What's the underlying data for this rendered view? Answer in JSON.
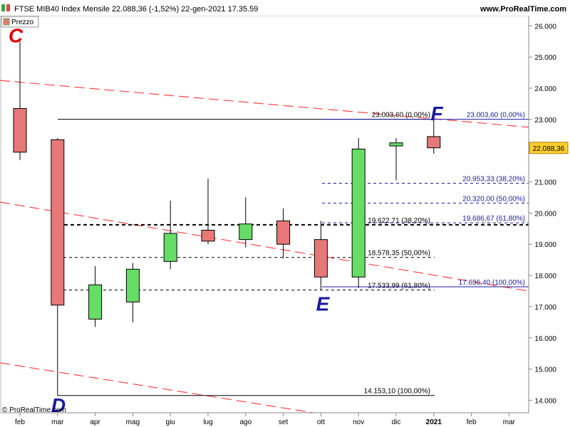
{
  "header": {
    "title": "FTSE MIB40 Index Mensile 22.088,36 (-1,52%) 22-gen-2021 17.35.59",
    "site": "www.ProRealTime.com",
    "legend_label": "Prezzo",
    "copyright": "© ProRealTime.com"
  },
  "colors": {
    "up": "#66dd66",
    "down": "#e87777",
    "trend": "#ff4444",
    "fib_text": "#1a1aa0",
    "wave_label": "#1a1aa0",
    "current_price_bg": "#ffcc33"
  },
  "chart_data": {
    "type": "candlestick",
    "title": "FTSE MIB40 Index Mensile",
    "ylim": [
      13.6,
      26.3
    ],
    "y_ticks": [
      "14.000",
      "15.000",
      "16.000",
      "17.000",
      "18.000",
      "19.000",
      "20.000",
      "21.000",
      "22.000",
      "23.000",
      "24.000",
      "25.000",
      "26.000"
    ],
    "y_tick_values": [
      14,
      15,
      16,
      17,
      18,
      19,
      20,
      21,
      22,
      23,
      24,
      25,
      26
    ],
    "x_ticks": [
      "feb",
      "mar",
      "apr",
      "mag",
      "giu",
      "lug",
      "ago",
      "set",
      "ott",
      "nov",
      "dic",
      "2021",
      "feb",
      "mar"
    ],
    "current_price": "22.088,36",
    "current_price_value": 22.088,
    "candles": [
      {
        "month": "feb 2020",
        "open": 23.35,
        "high": 25.5,
        "low": 21.7,
        "close": 21.95
      },
      {
        "month": "mar 2020",
        "open": 22.35,
        "high": 22.4,
        "low": 14.15,
        "close": 17.05
      },
      {
        "month": "apr 2020",
        "open": 16.6,
        "high": 18.3,
        "low": 16.35,
        "close": 17.7
      },
      {
        "month": "mag 2020",
        "open": 17.15,
        "high": 18.4,
        "low": 16.5,
        "close": 18.2
      },
      {
        "month": "giu 2020",
        "open": 18.45,
        "high": 20.4,
        "low": 18.2,
        "close": 19.35
      },
      {
        "month": "lug 2020",
        "open": 19.45,
        "high": 21.1,
        "low": 19.0,
        "close": 19.1
      },
      {
        "month": "ago 2020",
        "open": 19.15,
        "high": 20.5,
        "low": 18.9,
        "close": 19.65
      },
      {
        "month": "set 2020",
        "open": 19.75,
        "high": 20.15,
        "low": 18.55,
        "close": 19.0
      },
      {
        "month": "ott 2020",
        "open": 19.15,
        "high": 19.75,
        "low": 17.55,
        "close": 17.95
      },
      {
        "month": "nov 2020",
        "open": 17.95,
        "high": 22.4,
        "low": 17.6,
        "close": 22.05
      },
      {
        "month": "dic 2020",
        "open": 22.15,
        "high": 22.4,
        "low": 21.05,
        "close": 22.25
      },
      {
        "month": "gen 2021",
        "open": 22.45,
        "high": 23.0,
        "low": 21.9,
        "close": 22.09
      }
    ],
    "fib_levels_left": [
      {
        "label": "23.003,60 (0,00%)",
        "value": 23.0036
      },
      {
        "label": "19.622,71 (38,20%)",
        "value": 19.6227
      },
      {
        "label": "18.578,35 (50,00%)",
        "value": 18.5784
      },
      {
        "label": "17.533,99 (61,80%)",
        "value": 17.534
      },
      {
        "label": "14.153,10 (100,00%)",
        "value": 14.1531
      }
    ],
    "fib_levels_right": [
      {
        "label": "23.003,60 (0,00%)",
        "value": 23.0036
      },
      {
        "label": "20.953,33 (38,20%)",
        "value": 20.9533
      },
      {
        "label": "20.320,00 (50,00%)",
        "value": 20.32
      },
      {
        "label": "19.686,67 (61,80%)",
        "value": 19.6867
      },
      {
        "label": "17.636,40 (100,00%)",
        "value": 17.6364
      }
    ],
    "wave_labels": [
      "C",
      "D",
      "E",
      "F"
    ]
  }
}
